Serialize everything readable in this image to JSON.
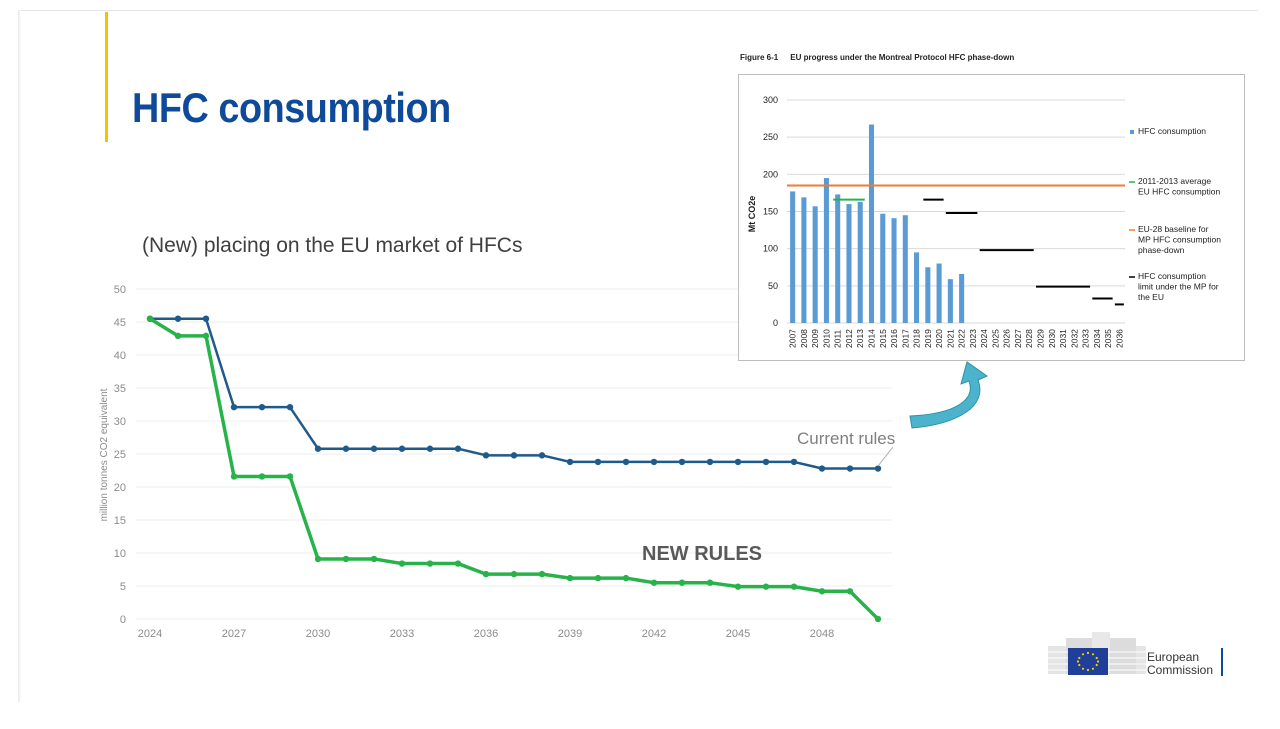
{
  "slide": {
    "title": "HFC consumption",
    "logo_text_line1": "European",
    "logo_text_line2": "Commission"
  },
  "colors": {
    "title": "#0e4a99",
    "accent": "#f5c400",
    "current_rules": "#1f5a8a",
    "new_rules": "#27b34a",
    "inset_bars": "#5b9bd5",
    "inset_baseline": "#ed7d31",
    "inset_average": "#27b34a",
    "inset_limit": "#000000",
    "arrow": "#4bb3cc"
  },
  "chart_data": [
    {
      "type": "line",
      "title": "(New) placing on the EU market of HFCs",
      "xlabel": "",
      "ylabel": "million tonnes CO2 equivalent",
      "ylim": [
        0,
        50
      ],
      "yticks": [
        0,
        5,
        10,
        15,
        20,
        25,
        30,
        35,
        40,
        45,
        50
      ],
      "xticks": [
        2024,
        2027,
        2030,
        2033,
        2036,
        2039,
        2042,
        2045,
        2048
      ],
      "grid": true,
      "x": [
        2024,
        2025,
        2026,
        2027,
        2028,
        2029,
        2030,
        2031,
        2032,
        2033,
        2034,
        2035,
        2036,
        2037,
        2038,
        2039,
        2040,
        2041,
        2042,
        2043,
        2044,
        2045,
        2046,
        2047,
        2048,
        2049,
        2050
      ],
      "series": [
        {
          "name": "Current rules",
          "color": "#1f5a8a",
          "values": [
            45.5,
            45.5,
            45.5,
            32.1,
            32.1,
            32.1,
            25.8,
            25.8,
            25.8,
            25.8,
            25.8,
            25.8,
            24.8,
            24.8,
            24.8,
            23.8,
            23.8,
            23.8,
            23.8,
            23.8,
            23.8,
            23.8,
            23.8,
            23.8,
            22.8,
            22.8,
            22.8
          ]
        },
        {
          "name": "NEW RULES",
          "color": "#27b34a",
          "values": [
            45.5,
            42.9,
            42.9,
            21.6,
            21.6,
            21.6,
            9.1,
            9.1,
            9.1,
            8.4,
            8.4,
            8.4,
            6.8,
            6.8,
            6.8,
            6.2,
            6.2,
            6.2,
            5.5,
            5.5,
            5.5,
            4.9,
            4.9,
            4.9,
            4.2,
            4.2,
            0
          ]
        }
      ]
    },
    {
      "type": "bar",
      "title": "EU progress under the Montreal Protocol HFC phase-down",
      "figure_label": "Figure 6-1",
      "ylabel": "Mt CO2e",
      "ylim": [
        0,
        300
      ],
      "yticks": [
        0,
        50,
        100,
        150,
        200,
        250,
        300
      ],
      "categories": [
        "2007",
        "2008",
        "2009",
        "2010",
        "2011",
        "2012",
        "2013",
        "2014",
        "2015",
        "2016",
        "2017",
        "2018",
        "2019",
        "2020",
        "2021",
        "2022",
        "2023",
        "2024",
        "2025",
        "2026",
        "2027",
        "2028",
        "2029",
        "2030",
        "2031",
        "2032",
        "2033",
        "2034",
        "2035",
        "2036"
      ],
      "series": [
        {
          "name": "HFC consumption",
          "color": "#5b9bd5",
          "values": [
            177,
            169,
            157,
            195,
            173,
            160,
            163,
            267,
            147,
            141,
            145,
            95,
            75,
            80,
            59,
            66,
            null,
            null,
            null,
            null,
            null,
            null,
            null,
            null,
            null,
            null,
            null,
            null,
            null,
            null
          ]
        }
      ],
      "reference_lines": [
        {
          "name": "2011-2013 average EU HFC consumption",
          "color": "#27b34a",
          "value": 166,
          "from": "2011",
          "to": "2013"
        },
        {
          "name": "EU-28 baseline for MP HFC consumption phase-down",
          "color": "#ed7d31",
          "value": 185,
          "from": "2007",
          "to": "2036"
        }
      ],
      "limit_segments": {
        "name": "HFC consumption limit under the MP for the EU",
        "color": "#000000",
        "segments": [
          {
            "from": "2019",
            "to": "2020",
            "value": 166
          },
          {
            "from": "2021",
            "to": "2023",
            "value": 148
          },
          {
            "from": "2024",
            "to": "2028",
            "value": 98
          },
          {
            "from": "2029",
            "to": "2033",
            "value": 49
          },
          {
            "from": "2034",
            "to": "2035",
            "value": 33
          },
          {
            "from": "2036",
            "to": "2036",
            "value": 25
          }
        ]
      },
      "legend_position": "right"
    }
  ]
}
